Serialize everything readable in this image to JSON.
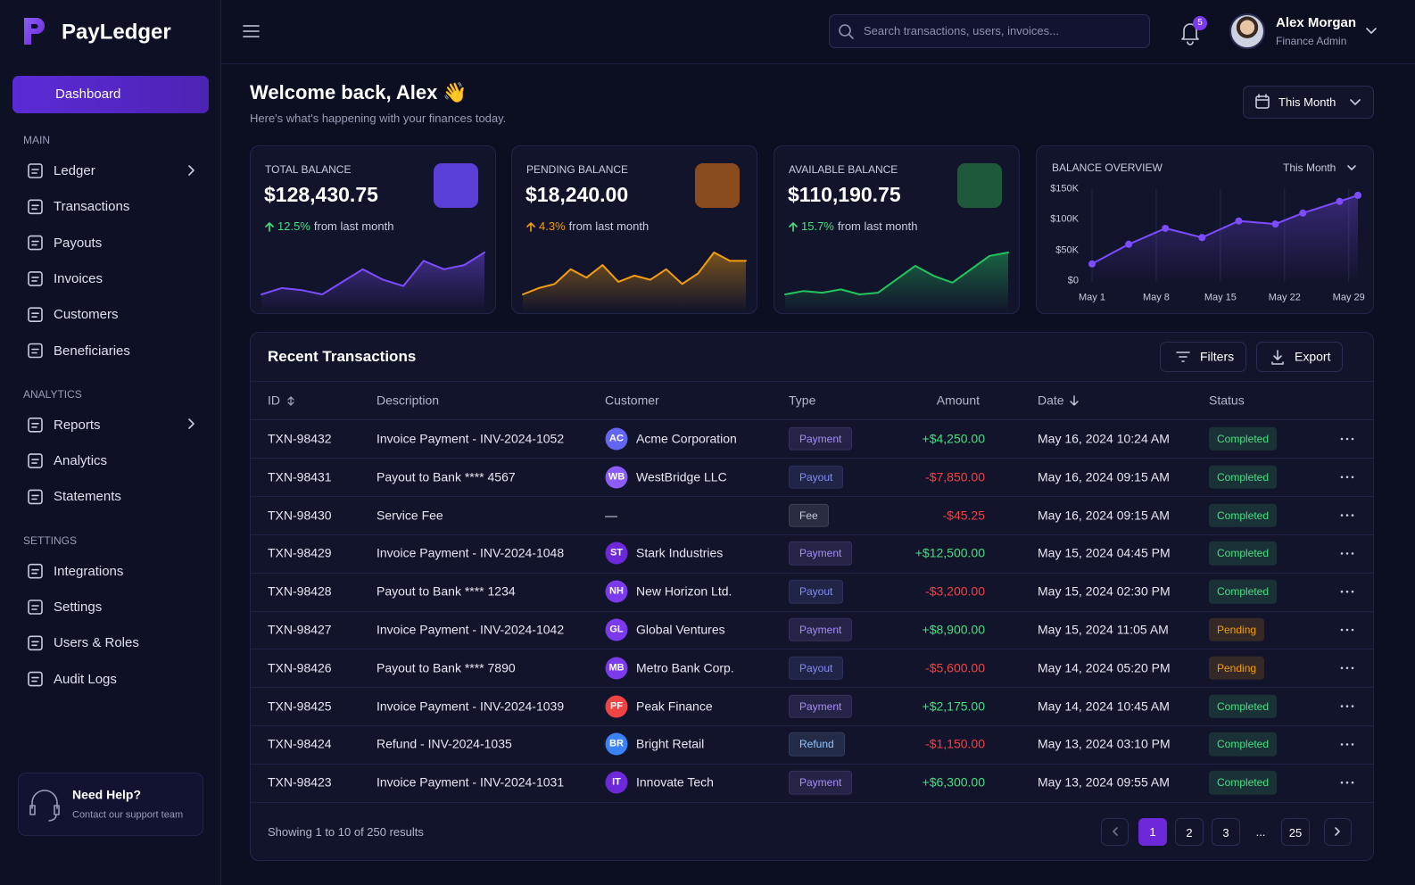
{
  "brand": "PayLedger",
  "header": {
    "search_placeholder": "Search transactions, users, invoices...",
    "notifications": "5",
    "user_name": "Alex Morgan",
    "user_role": "Finance Admin"
  },
  "sidebar": {
    "active": "Dashboard",
    "sections": [
      {
        "title": "MAIN",
        "items": [
          "Ledger",
          "Transactions",
          "Payouts",
          "Invoices",
          "Customers",
          "Beneficiaries"
        ]
      },
      {
        "title": "ANALYTICS",
        "items": [
          "Reports",
          "Analytics",
          "Statements"
        ]
      },
      {
        "title": "SETTINGS",
        "items": [
          "Integrations",
          "Settings",
          "Users & Roles",
          "Audit Logs"
        ]
      }
    ],
    "help_title": "Need Help?",
    "help_text": "Contact our support team"
  },
  "welcome": {
    "title": "Welcome back, Alex 👋",
    "subtitle": "Here's what's happening with your finances today.",
    "period": "This Month"
  },
  "stats": [
    {
      "label": "TOTAL BALANCE",
      "value": "$128,430.75",
      "change": "12.5%",
      "change_text": "from last month",
      "change_color": "#4ade80",
      "icon_color": "#5b3fd6",
      "color": "#7c4dff",
      "spark": [
        2,
        5,
        4,
        2,
        8,
        14,
        9,
        6,
        18,
        14,
        16,
        22
      ]
    },
    {
      "label": "PENDING BALANCE",
      "value": "$18,240.00",
      "change": "4.3%",
      "change_text": "from last month",
      "change_color": "#f59e0b",
      "icon_color": "#8a4b1f",
      "color": "#f59e0b",
      "spark": [
        2,
        5,
        7,
        14,
        10,
        16,
        8,
        11,
        9,
        14,
        7,
        12,
        22,
        18,
        18
      ]
    },
    {
      "label": "AVAILABLE BALANCE",
      "value": "$110,190.75",
      "change": "15.7%",
      "change_text": "from last month",
      "change_color": "#4ade80",
      "icon_color": "#1e5a3a",
      "color": "#22c55e",
      "spark": [
        3,
        5,
        4,
        6,
        3,
        4,
        12,
        20,
        14,
        10,
        18,
        26,
        28
      ]
    }
  ],
  "chart_data": {
    "type": "line",
    "title": "BALANCE OVERVIEW",
    "period": "This Month",
    "color": "#7c4dff",
    "grid": true,
    "x": [
      1,
      5,
      9,
      13,
      17,
      21,
      24,
      28,
      30
    ],
    "values": [
      28000,
      60000,
      86000,
      71000,
      98000,
      93000,
      111000,
      130000,
      140000
    ],
    "xlim": [
      1,
      30
    ],
    "xticks": [
      {
        "value": 1,
        "label": "May 1"
      },
      {
        "value": 8,
        "label": "May 8"
      },
      {
        "value": 15,
        "label": "May 15"
      },
      {
        "value": 22,
        "label": "May 22"
      },
      {
        "value": 29,
        "label": "May 29"
      }
    ],
    "ylim": [
      0,
      150000
    ],
    "yticks": [
      {
        "value": 0,
        "label": "$0"
      },
      {
        "value": 50000,
        "label": "$50K"
      },
      {
        "value": 100000,
        "label": "$100K"
      },
      {
        "value": 150000,
        "label": "$150K"
      }
    ]
  },
  "table": {
    "title": "Recent Transactions",
    "filters": "Filters",
    "export": "Export",
    "columns": [
      "ID",
      "Description",
      "Customer",
      "Type",
      "Amount",
      "Date",
      "Status"
    ],
    "rows": [
      {
        "id": "TXN-98432",
        "description": "Invoice Payment - INV-2024-1052",
        "customer": {
          "initials": "AC",
          "name": "Acme Corporation",
          "color": "#6366f1"
        },
        "type": {
          "label": "Payment",
          "color": "#a78bfa"
        },
        "amount": {
          "text": "+$4,250.00",
          "color": "#4ade80"
        },
        "date": "May 16, 2024 10:24 AM",
        "status": {
          "label": "Completed",
          "color": "#4ade80"
        }
      },
      {
        "id": "TXN-98431",
        "description": "Payout to Bank **** 4567",
        "customer": {
          "initials": "WB",
          "name": "WestBridge LLC",
          "color": "#8b5cf6"
        },
        "type": {
          "label": "Payout",
          "color": "#818cf8"
        },
        "amount": {
          "text": "-$7,850.00",
          "color": "#ef4444"
        },
        "date": "May 16, 2024 09:15 AM",
        "status": {
          "label": "Completed",
          "color": "#4ade80"
        }
      },
      {
        "id": "TXN-98430",
        "description": "Service Fee",
        "customer": {
          "name": "—"
        },
        "type": {
          "label": "Fee",
          "color": "#c7c9d9"
        },
        "amount": {
          "text": "-$45.25",
          "color": "#ef4444"
        },
        "date": "May 16, 2024 09:15 AM",
        "status": {
          "label": "Completed",
          "color": "#4ade80"
        }
      },
      {
        "id": "TXN-98429",
        "description": "Invoice Payment - INV-2024-1048",
        "customer": {
          "initials": "ST",
          "name": "Stark Industries",
          "color": "#6d28d9"
        },
        "type": {
          "label": "Payment",
          "color": "#a78bfa"
        },
        "amount": {
          "text": "+$12,500.00",
          "color": "#4ade80"
        },
        "date": "May 15, 2024 04:45 PM",
        "status": {
          "label": "Completed",
          "color": "#4ade80"
        }
      },
      {
        "id": "TXN-98428",
        "description": "Payout to Bank **** 1234",
        "customer": {
          "initials": "NH",
          "name": "New Horizon Ltd.",
          "color": "#7c3aed"
        },
        "type": {
          "label": "Payout",
          "color": "#818cf8"
        },
        "amount": {
          "text": "-$3,200.00",
          "color": "#ef4444"
        },
        "date": "May 15, 2024 02:30 PM",
        "status": {
          "label": "Completed",
          "color": "#4ade80"
        }
      },
      {
        "id": "TXN-98427",
        "description": "Invoice Payment - INV-2024-1042",
        "customer": {
          "initials": "GL",
          "name": "Global Ventures",
          "color": "#7c3aed"
        },
        "type": {
          "label": "Payment",
          "color": "#a78bfa"
        },
        "amount": {
          "text": "+$8,900.00",
          "color": "#4ade80"
        },
        "date": "May 15, 2024 11:05 AM",
        "status": {
          "label": "Pending",
          "color": "#f59e0b"
        }
      },
      {
        "id": "TXN-98426",
        "description": "Payout to Bank **** 7890",
        "customer": {
          "initials": "MB",
          "name": "Metro Bank Corp.",
          "color": "#7c3aed"
        },
        "type": {
          "label": "Payout",
          "color": "#818cf8"
        },
        "amount": {
          "text": "-$5,600.00",
          "color": "#ef4444"
        },
        "date": "May 14, 2024 05:20 PM",
        "status": {
          "label": "Pending",
          "color": "#f59e0b"
        }
      },
      {
        "id": "TXN-98425",
        "description": "Invoice Payment - INV-2024-1039",
        "customer": {
          "initials": "PF",
          "name": "Peak Finance",
          "color": "#ef4444"
        },
        "type": {
          "label": "Payment",
          "color": "#a78bfa"
        },
        "amount": {
          "text": "+$2,175.00",
          "color": "#4ade80"
        },
        "date": "May 14, 2024 10:45 AM",
        "status": {
          "label": "Completed",
          "color": "#4ade80"
        }
      },
      {
        "id": "TXN-98424",
        "description": "Refund - INV-2024-1035",
        "customer": {
          "initials": "BR",
          "name": "Bright Retail",
          "color": "#3b82f6"
        },
        "type": {
          "label": "Refund",
          "color": "#93c5fd"
        },
        "amount": {
          "text": "-$1,150.00",
          "color": "#ef4444"
        },
        "date": "May 13, 2024 03:10 PM",
        "status": {
          "label": "Completed",
          "color": "#4ade80"
        }
      },
      {
        "id": "TXN-98423",
        "description": "Invoice Payment - INV-2024-1031",
        "customer": {
          "initials": "IT",
          "name": "Innovate Tech",
          "color": "#6d28d9"
        },
        "type": {
          "label": "Payment",
          "color": "#a78bfa"
        },
        "amount": {
          "text": "+$6,300.00",
          "color": "#4ade80"
        },
        "date": "May 13, 2024 09:55 AM",
        "status": {
          "label": "Completed",
          "color": "#4ade80"
        }
      }
    ]
  },
  "pagination": {
    "summary": "Showing 1 to 10 of 250 results",
    "pages": [
      "1",
      "2",
      "3",
      "...",
      "25"
    ],
    "current": "1"
  }
}
